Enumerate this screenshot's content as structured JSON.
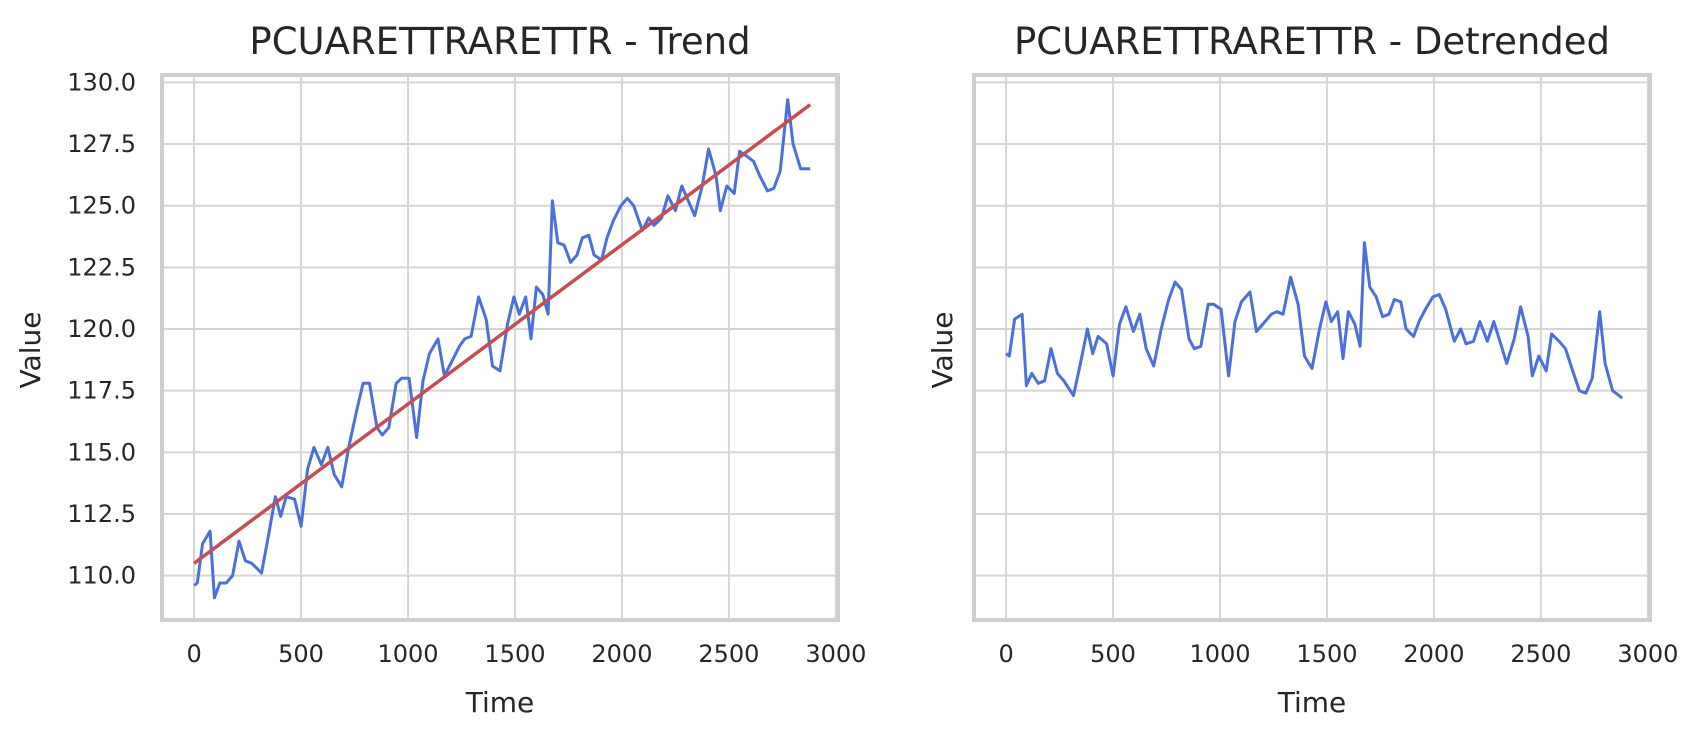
{
  "chart_data": [
    {
      "type": "line",
      "title": "PCUARETTRARETTR - Trend",
      "xlabel": "Time",
      "ylabel": "Value",
      "xlim": [
        -150,
        3010
      ],
      "ylim": [
        108.2,
        130.3
      ],
      "grid": true,
      "xticks": [
        0,
        500,
        1000,
        1500,
        2000,
        2500,
        3000
      ],
      "xtick_labels": [
        "0",
        "500",
        "1000",
        "1500",
        "2000",
        "2500",
        "3000"
      ],
      "yticks": [
        110.0,
        112.5,
        115.0,
        117.5,
        120.0,
        122.5,
        125.0,
        127.5,
        130.0
      ],
      "ytick_labels": [
        "110.0",
        "112.5",
        "115.0",
        "117.5",
        "120.0",
        "122.5",
        "125.0",
        "127.5",
        "130.0"
      ],
      "series": [
        {
          "color": "#4c6fdc",
          "x": [
            0,
            15,
            40,
            75,
            95,
            120,
            150,
            180,
            210,
            240,
            270,
            315,
            345,
            380,
            405,
            430,
            470,
            500,
            530,
            560,
            595,
            625,
            655,
            690,
            725,
            760,
            790,
            820,
            855,
            880,
            910,
            945,
            970,
            1005,
            1040,
            1070,
            1100,
            1140,
            1170,
            1200,
            1240,
            1265,
            1295,
            1330,
            1365,
            1395,
            1430,
            1465,
            1495,
            1520,
            1550,
            1575,
            1600,
            1630,
            1655,
            1675,
            1700,
            1730,
            1760,
            1790,
            1815,
            1845,
            1870,
            1905,
            1930,
            1960,
            1995,
            2025,
            2055,
            2095,
            2125,
            2150,
            2185,
            2215,
            2250,
            2280,
            2305,
            2340,
            2375,
            2405,
            2440,
            2460,
            2490,
            2525,
            2550,
            2585,
            2615,
            2645,
            2680,
            2710,
            2740,
            2775,
            2800,
            2835,
            2865,
            2880
          ],
          "y": [
            109.6,
            109.7,
            111.3,
            111.8,
            109.1,
            109.7,
            109.7,
            110.0,
            111.4,
            110.6,
            110.5,
            110.1,
            111.5,
            113.2,
            112.4,
            113.2,
            113.1,
            112.0,
            114.3,
            115.2,
            114.5,
            115.2,
            114.1,
            113.6,
            115.3,
            116.7,
            117.8,
            117.8,
            116.0,
            115.7,
            116.0,
            117.8,
            118.0,
            118.0,
            115.6,
            117.9,
            119.0,
            119.6,
            118.1,
            118.6,
            119.3,
            119.6,
            119.7,
            121.3,
            120.4,
            118.5,
            118.3,
            120.2,
            121.3,
            120.6,
            121.3,
            119.6,
            121.7,
            121.4,
            120.6,
            125.2,
            123.5,
            123.4,
            122.7,
            123.0,
            123.7,
            123.8,
            123.0,
            122.8,
            123.7,
            124.4,
            125.0,
            125.3,
            125.0,
            124.0,
            124.5,
            124.2,
            124.5,
            125.4,
            124.8,
            125.8,
            125.3,
            124.6,
            125.8,
            127.3,
            126.2,
            124.8,
            125.8,
            125.5,
            127.2,
            127.0,
            126.8,
            126.2,
            125.6,
            125.7,
            126.4,
            129.3,
            127.5,
            126.5,
            126.5,
            126.5
          ]
        },
        {
          "color": "#c44e52",
          "x": [
            0,
            2880
          ],
          "y": [
            110.5,
            129.1
          ]
        }
      ]
    },
    {
      "type": "line",
      "title": "PCUARETTRARETTR - Detrended",
      "xlabel": "Time",
      "ylabel": "Value",
      "xlim": [
        -150,
        3010
      ],
      "grid": true,
      "xticks": [
        0,
        500,
        1000,
        1500,
        2000,
        2500,
        3000
      ],
      "xtick_labels": [
        "0",
        "500",
        "1000",
        "1500",
        "2000",
        "2500",
        "3000"
      ],
      "series": [
        {
          "color": "#4c6fdc",
          "x": [
            0,
            15,
            40,
            75,
            95,
            120,
            150,
            180,
            210,
            240,
            270,
            315,
            345,
            380,
            405,
            430,
            470,
            500,
            530,
            560,
            595,
            625,
            655,
            690,
            725,
            760,
            790,
            820,
            855,
            880,
            910,
            945,
            970,
            1005,
            1040,
            1070,
            1100,
            1140,
            1170,
            1200,
            1240,
            1265,
            1295,
            1330,
            1365,
            1395,
            1430,
            1465,
            1495,
            1520,
            1550,
            1575,
            1600,
            1630,
            1655,
            1675,
            1700,
            1730,
            1760,
            1790,
            1815,
            1845,
            1870,
            1905,
            1930,
            1960,
            1995,
            2025,
            2055,
            2095,
            2125,
            2150,
            2185,
            2215,
            2250,
            2280,
            2305,
            2340,
            2375,
            2405,
            2440,
            2460,
            2490,
            2525,
            2550,
            2585,
            2615,
            2645,
            2680,
            2710,
            2740,
            2775,
            2800,
            2835,
            2865,
            2880
          ],
          "y": [
            119.0,
            118.9,
            120.4,
            120.6,
            117.7,
            118.2,
            117.8,
            117.9,
            119.2,
            118.2,
            117.9,
            117.3,
            118.5,
            120.0,
            119.0,
            119.7,
            119.4,
            118.1,
            120.2,
            120.9,
            119.9,
            120.6,
            119.2,
            118.5,
            120.0,
            121.2,
            121.9,
            121.6,
            119.6,
            119.2,
            119.3,
            121.0,
            121.0,
            120.8,
            118.1,
            120.3,
            121.1,
            121.5,
            119.9,
            120.2,
            120.6,
            120.7,
            120.6,
            122.1,
            121.0,
            118.9,
            118.4,
            120.0,
            121.1,
            120.3,
            120.7,
            118.8,
            120.7,
            120.2,
            119.3,
            123.5,
            121.7,
            121.3,
            120.5,
            120.6,
            121.2,
            121.1,
            120.0,
            119.7,
            120.3,
            120.8,
            121.3,
            121.4,
            120.8,
            119.5,
            120.0,
            119.4,
            119.5,
            120.3,
            119.5,
            120.3,
            119.6,
            118.6,
            119.6,
            120.9,
            119.7,
            118.1,
            118.9,
            118.3,
            119.8,
            119.5,
            119.2,
            118.4,
            117.5,
            117.4,
            118.0,
            120.7,
            118.6,
            117.5,
            117.3,
            117.2
          ]
        }
      ]
    }
  ]
}
